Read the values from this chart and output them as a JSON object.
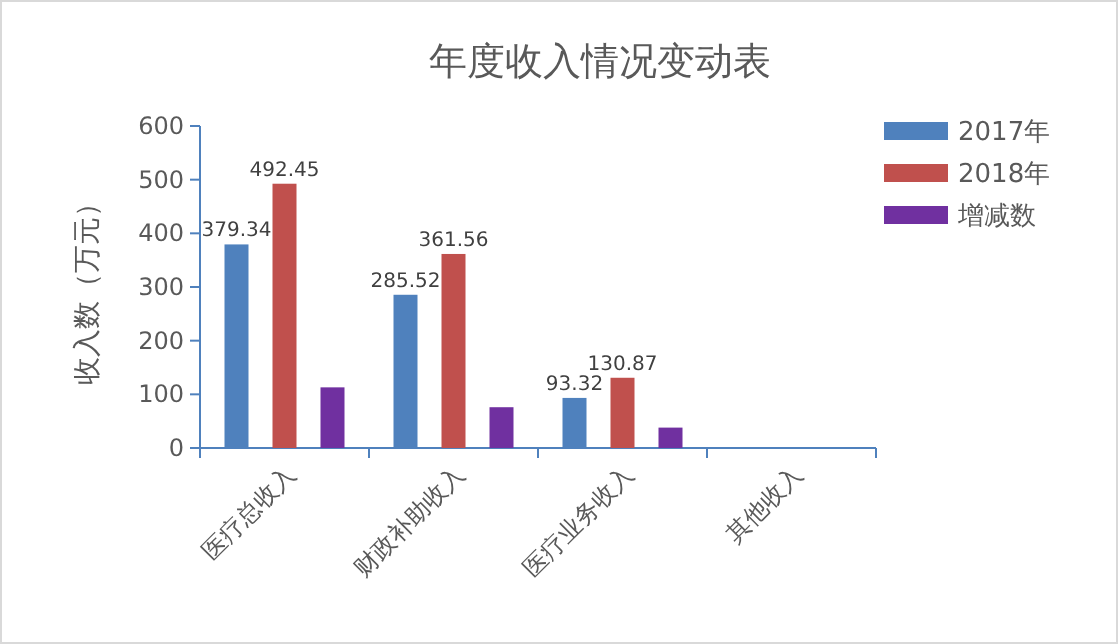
{
  "chart_data": {
    "type": "bar",
    "title": "年度收入情况变动表",
    "ylabel": "收入数（万元）",
    "categories": [
      "医疗总收入",
      "财政补助收入",
      "医疗业务收入",
      "其他收入"
    ],
    "series": [
      {
        "name": "2017年",
        "color": "#4f81bd",
        "values": [
          379.34,
          285.52,
          93.32,
          null
        ],
        "value_labels": [
          "379.34",
          "285.52",
          "93.32",
          null
        ]
      },
      {
        "name": "2018年",
        "color": "#c0504d",
        "values": [
          492.45,
          361.56,
          130.87,
          null
        ],
        "value_labels": [
          "492.45",
          "361.56",
          "130.87",
          null
        ]
      },
      {
        "name": "增减数",
        "color": "#7030a0",
        "values": [
          113,
          76,
          38,
          null
        ]
      }
    ],
    "ylim": [
      0,
      600
    ],
    "yticks": [
      0,
      100,
      200,
      300,
      400,
      500,
      600
    ],
    "grid": false,
    "legend": "right"
  }
}
